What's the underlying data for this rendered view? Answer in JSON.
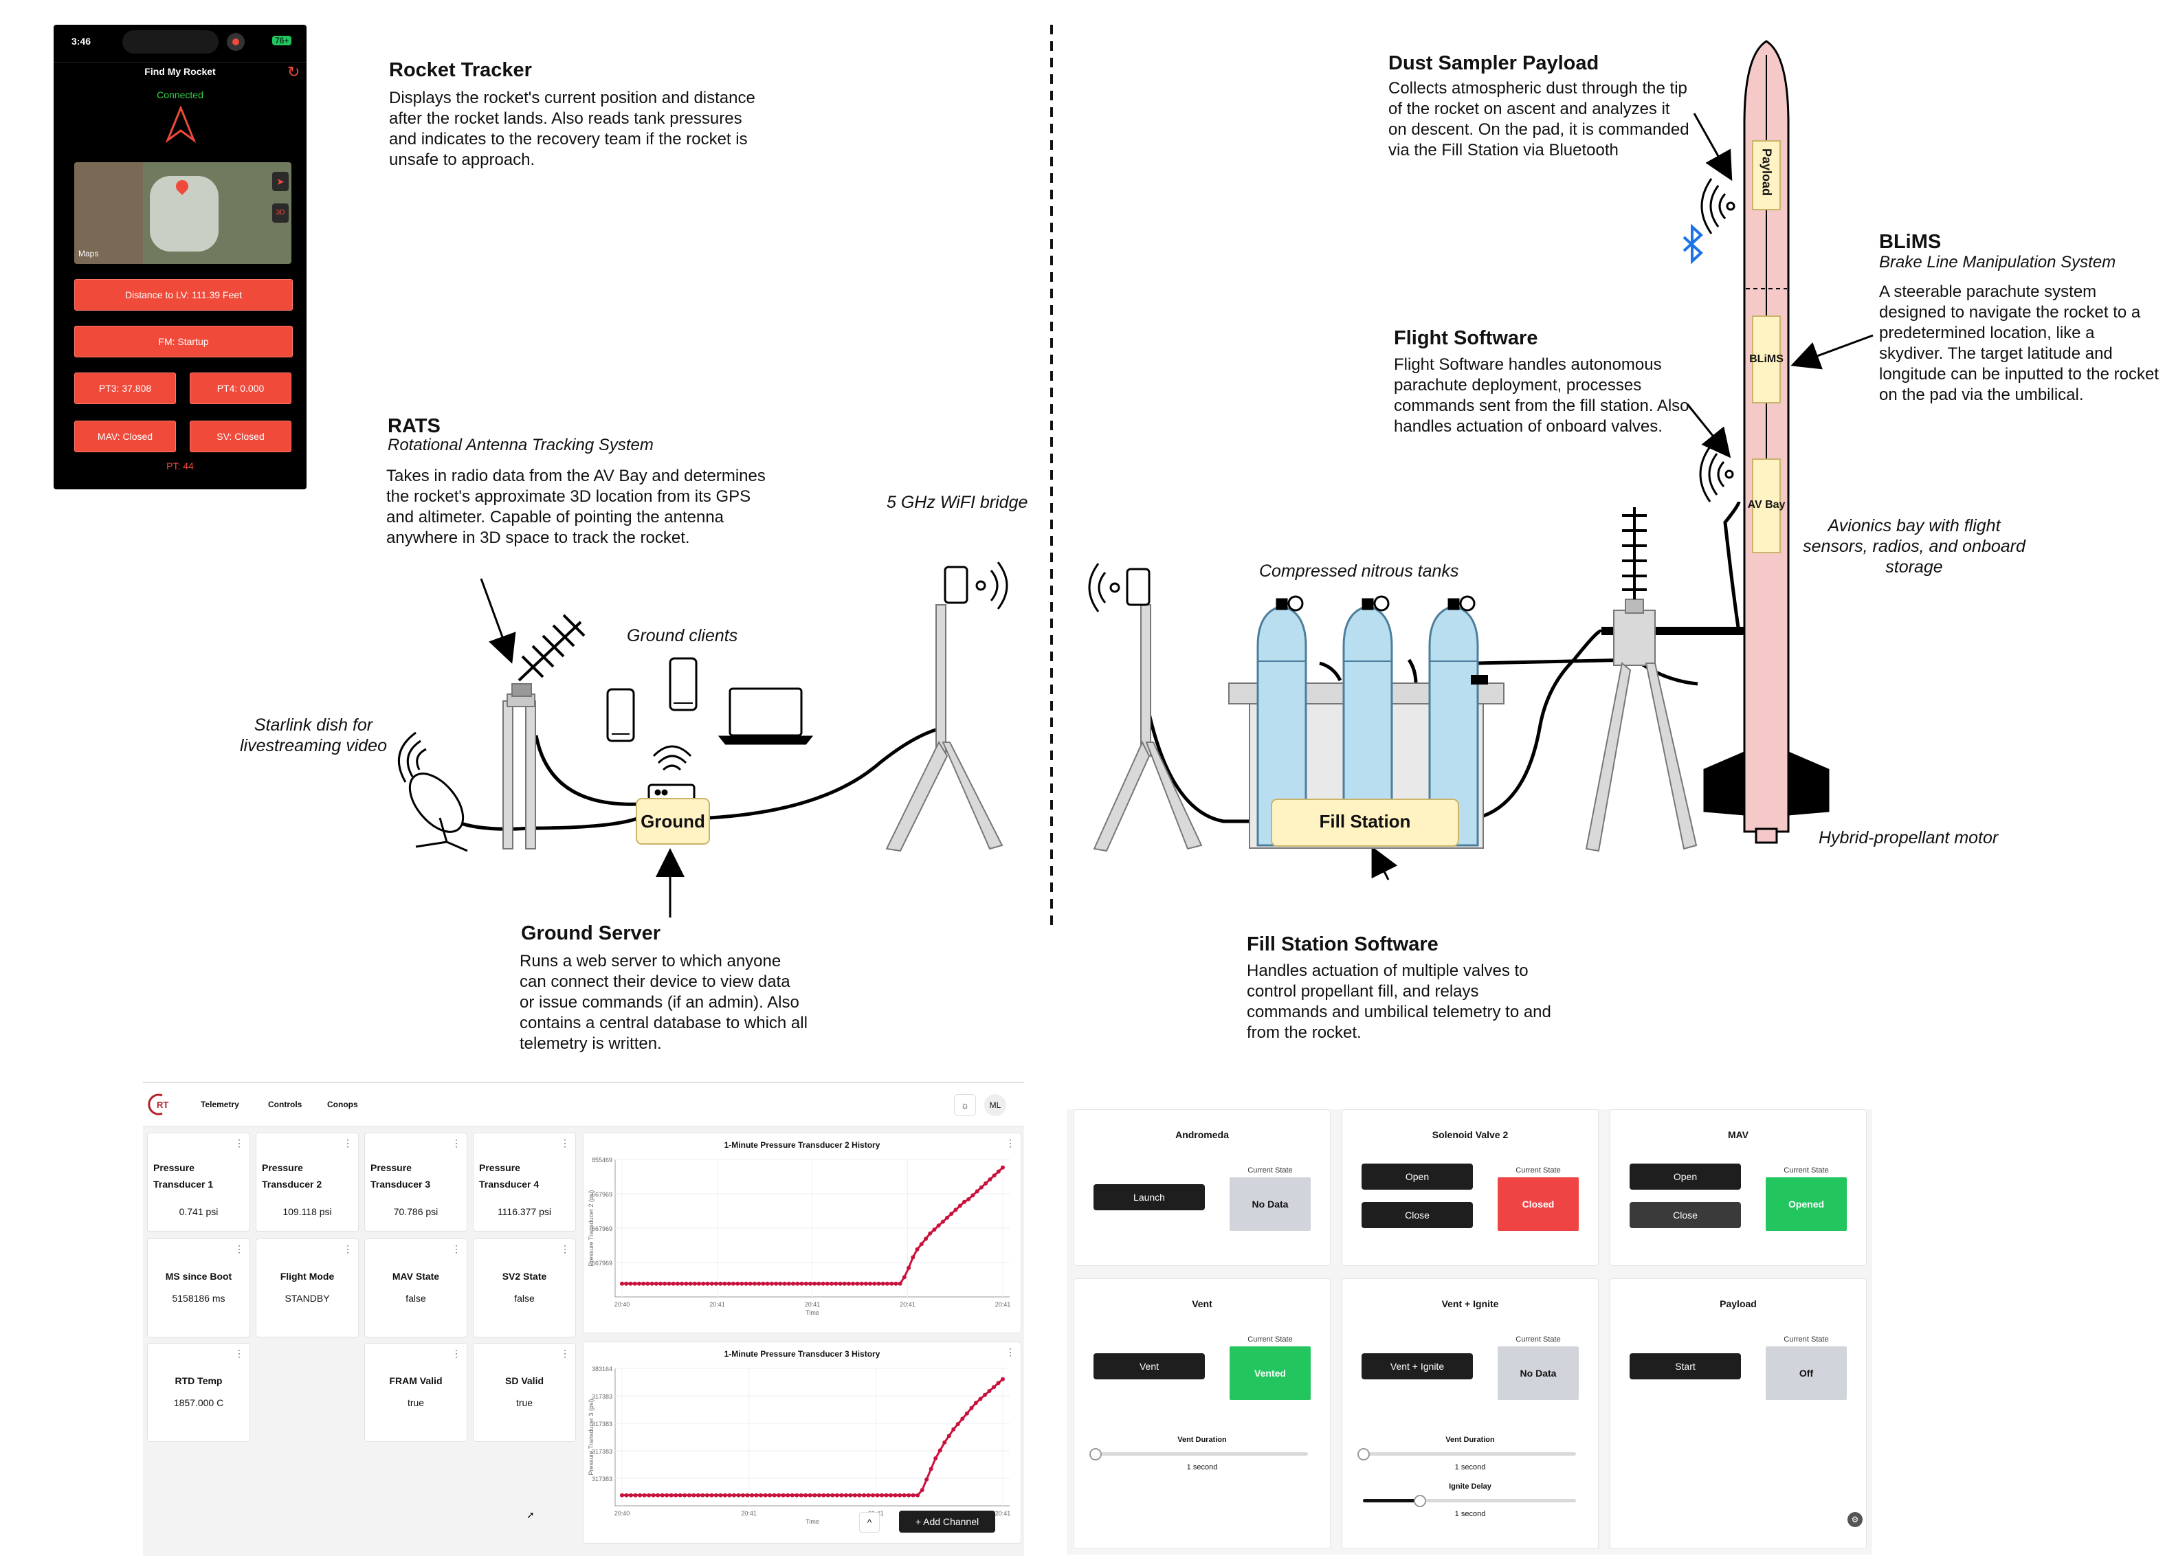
{
  "labels": {
    "rocket_tracker": {
      "title": "Rocket Tracker",
      "desc": "Displays the rocket's current position and distance after the rocket lands. Also reads tank pressures and indicates to the recovery team if the rocket is unsafe to approach."
    },
    "rats": {
      "title": "RATS",
      "subtitle": "Rotational Antenna Tracking System",
      "desc": "Takes in radio data from the AV Bay and determines the rocket's approximate 3D location from its GPS and altimeter. Capable of pointing the antenna anywhere in 3D space to track the rocket."
    },
    "ground_server": {
      "title": "Ground Server",
      "desc": "Runs a web server to which anyone can connect their device to view data or issue commands (if an admin). Also contains a central database to which all telemetry is written."
    },
    "dust_sampler": {
      "title": "Dust Sampler Payload",
      "desc": "Collects atmospheric dust through the tip of the rocket on ascent and analyzes it on descent. On the pad, it is commanded via the Fill Station via Bluetooth"
    },
    "blims": {
      "title": "BLiMS",
      "subtitle": "Brake Line Manipulation System",
      "desc": "A steerable parachute system designed to navigate the rocket to a predetermined location, like a skydiver. The target latitude and longitude can be inputted to the rocket on the pad via the umbilical."
    },
    "flight_software": {
      "title": "Flight Software",
      "desc": "Flight Software handles autonomous parachute deployment, processes commands sent from the fill station. Also handles actuation of onboard valves."
    },
    "fill_station_software": {
      "title": "Fill Station Software",
      "desc": "Handles actuation of multiple valves to control propellant fill, and relays commands and umbilical telemetry to and from the rocket."
    },
    "wifi_bridge": "5 GHz WiFI bridge",
    "ground_clients": "Ground clients",
    "starlink": "Starlink dish for livestreaming video",
    "nitrous_tanks": "Compressed nitrous tanks",
    "avionics": "Avionics bay with flight sensors, radios, and onboard storage",
    "hybrid_motor": "Hybrid-propellant motor",
    "ground_box": "Ground",
    "fill_station_box": "Fill Station",
    "rocket_payload": "Payload",
    "rocket_blims": "BLiMS",
    "rocket_avbay": "AV Bay"
  },
  "phone": {
    "time": "3:46",
    "battery": "76+",
    "title": "Find My Rocket",
    "status": "Connected",
    "maps_label": "Maps",
    "buttons": {
      "distance": "Distance to LV: 111.39 Feet",
      "fm": "FM: Startup",
      "pt3": "PT3: 37.808",
      "pt4": "PT4: 0.000",
      "mav": "MAV: Closed",
      "sv": "SV: Closed"
    },
    "pt": "PT: 44"
  },
  "dashboard": {
    "nav": [
      "Telemetry",
      "Controls",
      "Conops"
    ],
    "avatar": "ML",
    "cards": [
      {
        "name": "Pressure Transducer 1",
        "value": "0.741 psi"
      },
      {
        "name": "Pressure Transducer 2",
        "value": "109.118 psi"
      },
      {
        "name": "Pressure Transducer 3",
        "value": "70.786 psi"
      },
      {
        "name": "Pressure Transducer 4",
        "value": "1116.377 psi"
      },
      {
        "name": "MS since Boot",
        "value": "5158186 ms"
      },
      {
        "name": "Flight Mode",
        "value": "STANDBY"
      },
      {
        "name": "MAV State",
        "value": "false"
      },
      {
        "name": "SV2 State",
        "value": "false"
      },
      {
        "name": "RTD Temp",
        "value": "1857.000 C"
      },
      {
        "name": "FRAM Valid",
        "value": "true"
      },
      {
        "name": "SD Valid",
        "value": "true"
      }
    ],
    "add_channel": "+ Add Channel"
  },
  "chart_data": [
    {
      "type": "scatter",
      "title": "1-Minute Pressure Transducer 2 History",
      "ylabel": "Pressure Transducer 2 (psi)",
      "xlabel": "Time",
      "x_ticks": [
        "20:40",
        "20:41",
        "20:41",
        "20:41",
        "20:41"
      ],
      "y_ticks": [
        "855469",
        "667969",
        "667969",
        "667969"
      ],
      "y": [
        0.1,
        0.1,
        0.1,
        0.1,
        0.1,
        0.1,
        0.1,
        0.1,
        0.1,
        0.1,
        0.1,
        0.1,
        0.1,
        0.1,
        0.1,
        0.1,
        0.1,
        0.1,
        0.1,
        0.1,
        0.1,
        0.1,
        0.1,
        0.1,
        0.1,
        0.1,
        0.1,
        0.1,
        0.1,
        0.1,
        0.1,
        0.1,
        0.1,
        0.1,
        0.1,
        0.1,
        0.1,
        0.1,
        0.1,
        0.1,
        0.1,
        0.1,
        0.1,
        0.1,
        0.1,
        0.1,
        0.1,
        0.1,
        0.1,
        0.1,
        0.1,
        0.1,
        0.1,
        0.1,
        0.1,
        0.1,
        0.1,
        0.1,
        0.1,
        0.1,
        0.1,
        0.1,
        0.1,
        0.1,
        0.1,
        0.1,
        0.15,
        0.22,
        0.3,
        0.36,
        0.4,
        0.44,
        0.48,
        0.51,
        0.54,
        0.57,
        0.6,
        0.63,
        0.66,
        0.69,
        0.72,
        0.74,
        0.77,
        0.8,
        0.83,
        0.86,
        0.89,
        0.92,
        0.95,
        0.98
      ]
    },
    {
      "type": "scatter",
      "title": "1-Minute Pressure Transducer 3 History",
      "ylabel": "Pressure Transducer 3 (psi)",
      "xlabel": "Time",
      "x_ticks": [
        "20:40",
        "20:41",
        "20:41",
        "20:41"
      ],
      "y_ticks": [
        "383164",
        "317383",
        "317383",
        "317383",
        "317383"
      ],
      "y": [
        0.08,
        0.08,
        0.08,
        0.08,
        0.08,
        0.08,
        0.08,
        0.08,
        0.08,
        0.08,
        0.08,
        0.08,
        0.08,
        0.08,
        0.08,
        0.08,
        0.08,
        0.08,
        0.08,
        0.08,
        0.08,
        0.08,
        0.08,
        0.08,
        0.08,
        0.08,
        0.08,
        0.08,
        0.08,
        0.08,
        0.08,
        0.08,
        0.08,
        0.08,
        0.08,
        0.08,
        0.08,
        0.08,
        0.08,
        0.08,
        0.08,
        0.08,
        0.08,
        0.08,
        0.08,
        0.08,
        0.08,
        0.08,
        0.08,
        0.08,
        0.08,
        0.08,
        0.08,
        0.08,
        0.08,
        0.08,
        0.08,
        0.08,
        0.08,
        0.08,
        0.08,
        0.08,
        0.08,
        0.08,
        0.08,
        0.08,
        0.08,
        0.12,
        0.2,
        0.28,
        0.36,
        0.42,
        0.48,
        0.53,
        0.58,
        0.62,
        0.66,
        0.7,
        0.74,
        0.78,
        0.81,
        0.84,
        0.87,
        0.9,
        0.93,
        0.96
      ]
    }
  ],
  "controls": {
    "current_state": "Current State",
    "andromeda": {
      "title": "Andromeda",
      "button": "Launch",
      "state": "No Data"
    },
    "sv2": {
      "title": "Solenoid Valve 2",
      "open": "Open",
      "close": "Close",
      "state": "Closed"
    },
    "mav": {
      "title": "MAV",
      "open": "Open",
      "close": "Close",
      "state": "Opened"
    },
    "vent": {
      "title": "Vent",
      "button": "Vent",
      "state": "Vented",
      "duration_label": "Vent Duration",
      "duration": "1 second"
    },
    "vent_ignite": {
      "title": "Vent + Ignite",
      "button": "Vent + Ignite",
      "state": "No Data",
      "duration_label": "Vent Duration",
      "duration": "1 second",
      "delay_label": "Ignite Delay",
      "delay": "1 second"
    },
    "payload": {
      "title": "Payload",
      "button": "Start",
      "state": "Off"
    }
  },
  "colors": {
    "danger": "#f04a3a",
    "success": "#22c55e",
    "nodata": "#d1d5db",
    "rocket": "#f6c9c9",
    "box": "#fff3c4",
    "tank": "#b9def0",
    "chart": "#c8123c"
  }
}
